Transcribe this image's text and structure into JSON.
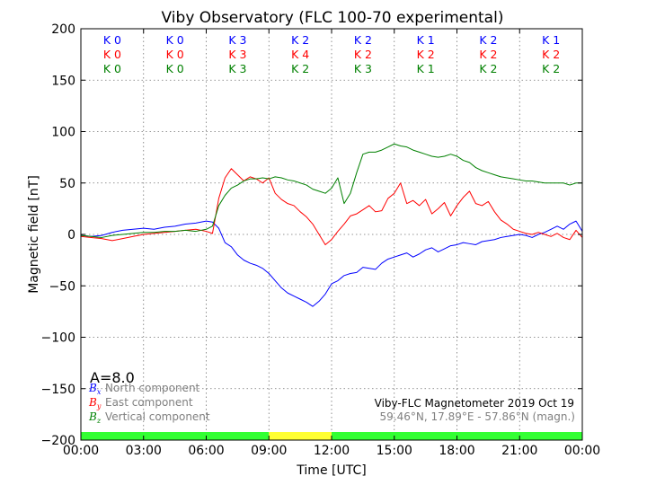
{
  "chart_data": {
    "type": "line",
    "title": "Viby Observatory (FLC 100-70 experimental)",
    "xlabel": "Time [UTC]",
    "ylabel": "Magnetic field [nT]",
    "xlim": [
      0,
      24
    ],
    "ylim": [
      -200,
      200
    ],
    "x_ticks": [
      0,
      3,
      6,
      9,
      12,
      15,
      18,
      21,
      24
    ],
    "x_tick_labels": [
      "00:00",
      "03:00",
      "06:00",
      "09:00",
      "12:00",
      "15:00",
      "18:00",
      "21:00",
      "00:00"
    ],
    "y_ticks": [
      -200,
      -150,
      -100,
      -50,
      0,
      50,
      100,
      150,
      200
    ],
    "y_tick_labels": [
      "−200",
      "−150",
      "−100",
      "−50",
      "0",
      "50",
      "100",
      "150",
      "200"
    ],
    "grid": true,
    "series": [
      {
        "name": "North component",
        "symbol": "B",
        "subscript": "x",
        "color": "#0000ff",
        "x": [
          0,
          0.5,
          1,
          1.5,
          2,
          2.5,
          3,
          3.5,
          4,
          4.5,
          5,
          5.5,
          6,
          6.3,
          6.6,
          6.9,
          7.2,
          7.5,
          7.8,
          8.1,
          8.4,
          8.7,
          9,
          9.3,
          9.6,
          9.9,
          10.2,
          10.5,
          10.8,
          11.1,
          11.4,
          11.7,
          12,
          12.3,
          12.6,
          12.9,
          13.2,
          13.5,
          13.8,
          14.1,
          14.4,
          14.7,
          15,
          15.3,
          15.6,
          15.9,
          16.2,
          16.5,
          16.8,
          17.1,
          17.4,
          17.7,
          18,
          18.3,
          18.6,
          18.9,
          19.2,
          19.5,
          19.8,
          20.1,
          20.4,
          20.7,
          21,
          21.3,
          21.6,
          21.9,
          22.2,
          22.5,
          22.8,
          23.1,
          23.4,
          23.7,
          24
        ],
        "values": [
          -1,
          -2,
          -1,
          2,
          4,
          5,
          6,
          5,
          7,
          8,
          10,
          11,
          13,
          12,
          6,
          -8,
          -12,
          -20,
          -25,
          -28,
          -30,
          -33,
          -38,
          -45,
          -52,
          -57,
          -60,
          -63,
          -66,
          -70,
          -65,
          -58,
          -48,
          -45,
          -40,
          -38,
          -37,
          -32,
          -33,
          -34,
          -28,
          -24,
          -22,
          -20,
          -18,
          -22,
          -19,
          -15,
          -13,
          -17,
          -14,
          -11,
          -10,
          -8,
          -9,
          -10,
          -7,
          -6,
          -5,
          -3,
          -2,
          -1,
          0,
          -1,
          -3,
          0,
          2,
          5,
          8,
          5,
          10,
          13,
          3
        ]
      },
      {
        "name": "East component",
        "symbol": "B",
        "subscript": "y",
        "color": "#ff0000",
        "x": [
          0,
          0.5,
          1,
          1.5,
          2,
          2.5,
          3,
          3.5,
          4,
          4.5,
          5,
          5.5,
          6,
          6.3,
          6.6,
          6.9,
          7.2,
          7.5,
          7.8,
          8.1,
          8.4,
          8.7,
          9,
          9.3,
          9.6,
          9.9,
          10.2,
          10.5,
          10.8,
          11.1,
          11.4,
          11.7,
          12,
          12.3,
          12.6,
          12.9,
          13.2,
          13.5,
          13.8,
          14.1,
          14.4,
          14.7,
          15,
          15.3,
          15.6,
          15.9,
          16.2,
          16.5,
          16.8,
          17.1,
          17.4,
          17.7,
          18,
          18.3,
          18.6,
          18.9,
          19.2,
          19.5,
          19.8,
          20.1,
          20.4,
          20.7,
          21,
          21.3,
          21.6,
          21.9,
          22.2,
          22.5,
          22.8,
          23.1,
          23.4,
          23.7,
          24
        ],
        "values": [
          -2,
          -3,
          -4,
          -6,
          -4,
          -2,
          0,
          1,
          2,
          3,
          4,
          5,
          3,
          1,
          35,
          55,
          64,
          58,
          52,
          56,
          54,
          50,
          55,
          40,
          34,
          30,
          28,
          22,
          17,
          10,
          0,
          -10,
          -5,
          3,
          10,
          18,
          20,
          24,
          28,
          22,
          23,
          35,
          40,
          50,
          30,
          33,
          28,
          34,
          20,
          25,
          31,
          18,
          28,
          36,
          42,
          30,
          28,
          32,
          22,
          14,
          10,
          5,
          3,
          1,
          0,
          2,
          0,
          -2,
          1,
          -3,
          -5,
          4,
          -3
        ]
      },
      {
        "name": "Vertical component",
        "symbol": "B",
        "subscript": "z",
        "color": "#008000",
        "x": [
          0,
          0.5,
          1,
          1.5,
          2,
          2.5,
          3,
          3.5,
          4,
          4.5,
          5,
          5.5,
          6,
          6.3,
          6.6,
          6.9,
          7.2,
          7.5,
          7.8,
          8.1,
          8.4,
          8.7,
          9,
          9.3,
          9.6,
          9.9,
          10.2,
          10.5,
          10.8,
          11.1,
          11.4,
          11.7,
          12,
          12.3,
          12.6,
          12.9,
          13.2,
          13.5,
          13.8,
          14.1,
          14.4,
          14.7,
          15,
          15.3,
          15.6,
          15.9,
          16.2,
          16.5,
          16.8,
          17.1,
          17.4,
          17.7,
          18,
          18.3,
          18.6,
          18.9,
          19.2,
          19.5,
          19.8,
          20.1,
          20.4,
          20.7,
          21,
          21.3,
          21.6,
          21.9,
          22.2,
          22.5,
          22.8,
          23.1,
          23.4,
          23.7,
          24
        ],
        "values": [
          -1,
          -2,
          -3,
          -1,
          0,
          1,
          2,
          2,
          3,
          3,
          4,
          3,
          5,
          8,
          28,
          38,
          45,
          48,
          52,
          54,
          54,
          55,
          54,
          56,
          55,
          53,
          52,
          50,
          48,
          44,
          42,
          40,
          45,
          55,
          30,
          40,
          60,
          78,
          80,
          80,
          82,
          85,
          88,
          86,
          85,
          82,
          80,
          78,
          76,
          75,
          76,
          78,
          76,
          72,
          70,
          65,
          62,
          60,
          58,
          56,
          55,
          54,
          53,
          52,
          52,
          51,
          50,
          50,
          50,
          50,
          48,
          50,
          50
        ]
      }
    ],
    "k_indices": {
      "rows": [
        {
          "color": "#0000ff",
          "labels": [
            "K 0",
            "K 0",
            "K 3",
            "K 2",
            "K 2",
            "K 1",
            "K 2",
            "K 1"
          ]
        },
        {
          "color": "#ff0000",
          "labels": [
            "K 0",
            "K 0",
            "K 3",
            "K 4",
            "K 2",
            "K 2",
            "K 2",
            "K 2"
          ]
        },
        {
          "color": "#008000",
          "labels": [
            "K 0",
            "K 0",
            "K 3",
            "K 2",
            "K 3",
            "K 1",
            "K 2",
            "K 2"
          ]
        }
      ]
    },
    "activity_bar": [
      {
        "from": 0,
        "to": 9,
        "color": "#33ff33"
      },
      {
        "from": 9,
        "to": 12,
        "color": "#ffff33"
      },
      {
        "from": 12,
        "to": 24,
        "color": "#33ff33"
      }
    ],
    "a_index": "A=8.0",
    "station": "Viby-FLC Magnetometer 2019 Oct 19",
    "coordinates": "59.46°N, 17.89°E - 57.86°N (magn.)"
  }
}
